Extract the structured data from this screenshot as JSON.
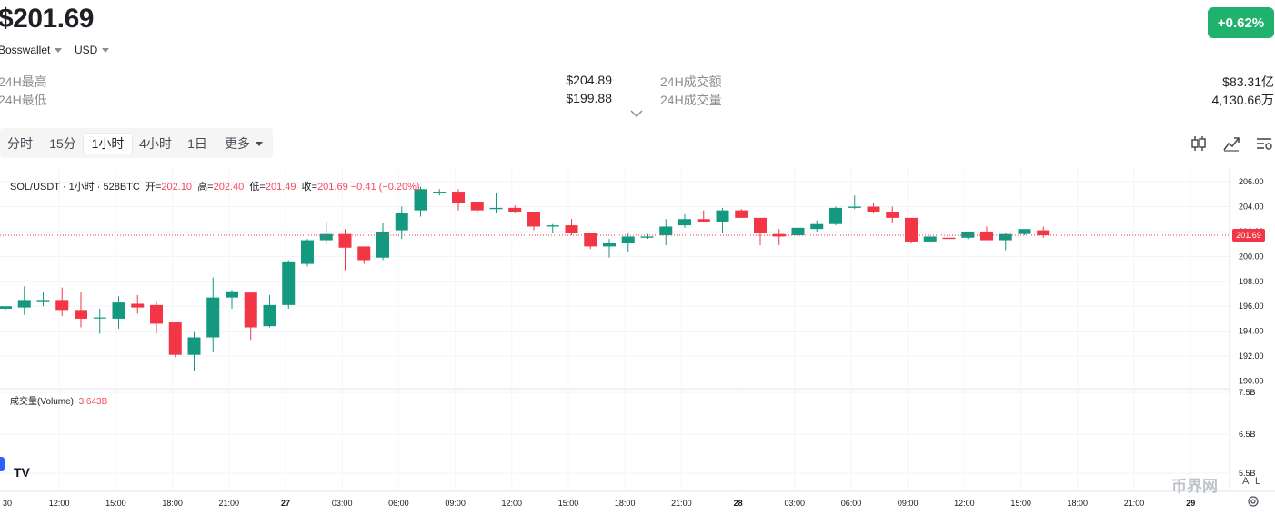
{
  "header": {
    "price": "$201.69",
    "change": "+0.62%",
    "wallet_select": "Bosswallet",
    "currency_select": "USD"
  },
  "stats": {
    "high_label": "24H最高",
    "high_value": "$204.89",
    "low_label": "24H最低",
    "low_value": "$199.88",
    "turnover_label": "24H成交额",
    "turnover_value": "$83.31亿",
    "volume_label": "24H成交量",
    "volume_value": "4,130.66万"
  },
  "timeframes": {
    "items": [
      "分时",
      "15分",
      "1小时",
      "4小时",
      "1日",
      "更多"
    ],
    "active": "1小时"
  },
  "toolbar_icons": [
    "candlestick-icon",
    "indicator-icon",
    "settings-list-icon"
  ],
  "legend": {
    "symbol": "SOL/USDT · 1小时 · 528BTC",
    "open_k": "开=",
    "open_v": "202.10",
    "high_k": "高=",
    "high_v": "202.40",
    "low_k": "低=",
    "low_v": "201.49",
    "close_k": "收=",
    "close_v": "201.69 −0.41 (−0.20%)"
  },
  "volume_legend": {
    "label": "成交量(Volume)",
    "value": "3.643B"
  },
  "watermark": "币界网",
  "colors": {
    "up": "#13997f",
    "down": "#f23645",
    "change_badge": "#20b26c",
    "last_price_tag": "#f23645"
  },
  "chart_data": {
    "type": "candlestick",
    "last_price_label": "201.69",
    "y_ticks": [
      "206.00",
      "204.00",
      "202.00",
      "200.00",
      "198.00",
      "196.00",
      "194.00",
      "192.00",
      "190.00"
    ],
    "ylim": [
      189.6,
      207.1
    ],
    "volume_ticks": [
      "7.5B",
      "6.5B",
      "5.5B"
    ],
    "x_tick_labels": [
      "30",
      "12:00",
      "15:00",
      "18:00",
      "21:00",
      "27",
      "03:00",
      "06:00",
      "09:00",
      "12:00",
      "15:00",
      "18:00",
      "21:00",
      "28",
      "03:00",
      "06:00",
      "09:00",
      "12:00",
      "15:00",
      "18:00",
      "21:00",
      "29"
    ],
    "bold_x_labels": [
      "27",
      "28",
      "29"
    ],
    "candles": [
      {
        "o": 195.8,
        "h": 196.0,
        "l": 195.7,
        "c": 196.0
      },
      {
        "o": 195.9,
        "h": 197.6,
        "l": 195.3,
        "c": 196.5
      },
      {
        "o": 196.4,
        "h": 197.1,
        "l": 196.0,
        "c": 196.5
      },
      {
        "o": 196.5,
        "h": 197.5,
        "l": 195.2,
        "c": 195.7
      },
      {
        "o": 195.7,
        "h": 197.1,
        "l": 194.3,
        "c": 195.0
      },
      {
        "o": 195.1,
        "h": 195.8,
        "l": 193.8,
        "c": 195.1
      },
      {
        "o": 195.0,
        "h": 196.8,
        "l": 194.2,
        "c": 196.3
      },
      {
        "o": 196.2,
        "h": 196.9,
        "l": 195.4,
        "c": 195.9
      },
      {
        "o": 196.1,
        "h": 196.4,
        "l": 193.8,
        "c": 194.6
      },
      {
        "o": 194.7,
        "h": 194.7,
        "l": 191.9,
        "c": 192.1
      },
      {
        "o": 192.1,
        "h": 194.0,
        "l": 190.8,
        "c": 193.5
      },
      {
        "o": 193.5,
        "h": 198.3,
        "l": 192.3,
        "c": 196.7
      },
      {
        "o": 196.7,
        "h": 197.3,
        "l": 195.8,
        "c": 197.2
      },
      {
        "o": 197.1,
        "h": 197.1,
        "l": 193.3,
        "c": 194.3
      },
      {
        "o": 194.4,
        "h": 196.9,
        "l": 194.3,
        "c": 196.1
      },
      {
        "o": 196.1,
        "h": 199.7,
        "l": 195.8,
        "c": 199.6
      },
      {
        "o": 199.4,
        "h": 201.4,
        "l": 199.2,
        "c": 201.3
      },
      {
        "o": 201.3,
        "h": 202.8,
        "l": 201.0,
        "c": 201.8
      },
      {
        "o": 201.8,
        "h": 202.2,
        "l": 198.9,
        "c": 200.7
      },
      {
        "o": 200.8,
        "h": 200.8,
        "l": 199.4,
        "c": 199.7
      },
      {
        "o": 199.9,
        "h": 202.7,
        "l": 199.7,
        "c": 202.0
      },
      {
        "o": 202.1,
        "h": 204.0,
        "l": 201.4,
        "c": 203.5
      },
      {
        "o": 203.7,
        "h": 205.6,
        "l": 203.2,
        "c": 205.4
      },
      {
        "o": 205.1,
        "h": 205.4,
        "l": 204.9,
        "c": 205.2
      },
      {
        "o": 205.2,
        "h": 205.4,
        "l": 203.7,
        "c": 204.3
      },
      {
        "o": 204.4,
        "h": 204.4,
        "l": 203.5,
        "c": 203.7
      },
      {
        "o": 203.8,
        "h": 205.1,
        "l": 203.5,
        "c": 203.9
      },
      {
        "o": 203.9,
        "h": 204.1,
        "l": 203.5,
        "c": 203.6
      },
      {
        "o": 203.6,
        "h": 203.6,
        "l": 202.1,
        "c": 202.4
      },
      {
        "o": 202.4,
        "h": 202.6,
        "l": 201.9,
        "c": 202.5
      },
      {
        "o": 202.5,
        "h": 203.0,
        "l": 201.7,
        "c": 201.9
      },
      {
        "o": 201.9,
        "h": 201.9,
        "l": 200.6,
        "c": 200.8
      },
      {
        "o": 200.8,
        "h": 201.4,
        "l": 199.9,
        "c": 201.1
      },
      {
        "o": 201.1,
        "h": 201.9,
        "l": 200.4,
        "c": 201.6
      },
      {
        "o": 201.5,
        "h": 201.8,
        "l": 201.4,
        "c": 201.6
      },
      {
        "o": 201.7,
        "h": 203.0,
        "l": 200.9,
        "c": 202.4
      },
      {
        "o": 202.5,
        "h": 203.4,
        "l": 202.3,
        "c": 203.0
      },
      {
        "o": 203.0,
        "h": 203.7,
        "l": 202.8,
        "c": 202.8
      },
      {
        "o": 202.8,
        "h": 203.9,
        "l": 201.9,
        "c": 203.7
      },
      {
        "o": 203.7,
        "h": 203.8,
        "l": 203.1,
        "c": 203.1
      },
      {
        "o": 203.1,
        "h": 203.1,
        "l": 200.9,
        "c": 201.9
      },
      {
        "o": 201.8,
        "h": 202.2,
        "l": 200.9,
        "c": 201.6
      },
      {
        "o": 201.7,
        "h": 202.3,
        "l": 201.5,
        "c": 202.3
      },
      {
        "o": 202.2,
        "h": 202.9,
        "l": 202.0,
        "c": 202.6
      },
      {
        "o": 202.6,
        "h": 204.0,
        "l": 202.5,
        "c": 203.9
      },
      {
        "o": 203.9,
        "h": 204.9,
        "l": 203.8,
        "c": 204.0
      },
      {
        "o": 204.0,
        "h": 204.3,
        "l": 203.5,
        "c": 203.6
      },
      {
        "o": 203.6,
        "h": 204.0,
        "l": 202.7,
        "c": 203.1
      },
      {
        "o": 203.1,
        "h": 203.1,
        "l": 201.1,
        "c": 201.2
      },
      {
        "o": 201.2,
        "h": 201.6,
        "l": 201.2,
        "c": 201.6
      },
      {
        "o": 201.5,
        "h": 201.8,
        "l": 200.9,
        "c": 201.4
      },
      {
        "o": 201.5,
        "h": 202.0,
        "l": 201.4,
        "c": 202.0
      },
      {
        "o": 202.0,
        "h": 202.4,
        "l": 201.3,
        "c": 201.3
      },
      {
        "o": 201.3,
        "h": 201.9,
        "l": 200.5,
        "c": 201.8
      },
      {
        "o": 201.8,
        "h": 202.2,
        "l": 201.7,
        "c": 202.2
      },
      {
        "o": 202.1,
        "h": 202.4,
        "l": 201.5,
        "c": 201.7
      }
    ]
  }
}
